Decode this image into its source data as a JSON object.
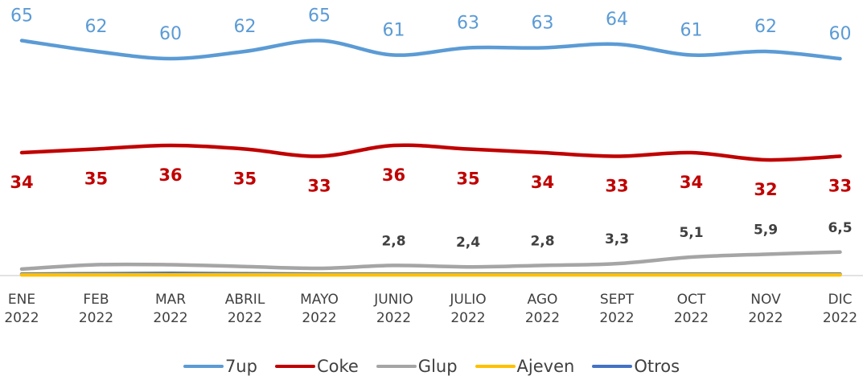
{
  "chart_data": {
    "type": "line",
    "categories": [
      "ENE\n2022",
      "FEB\n2022",
      "MAR\n2022",
      "ABRIL\n2022",
      "MAYO\n2022",
      "JUNIO\n2022",
      "JULIO\n2022",
      "AGO\n2022",
      "SEPT\n2022",
      "OCT\n2022",
      "NOV\n2022",
      "DIC\n2022"
    ],
    "series": [
      {
        "name": "7up",
        "color": "#5b9bd5",
        "values": [
          65,
          62,
          60,
          62,
          65,
          61,
          63,
          63,
          64,
          61,
          62,
          60
        ]
      },
      {
        "name": "Coke",
        "color": "#c00000",
        "values": [
          34,
          35,
          36,
          35,
          33,
          36,
          35,
          34,
          33,
          34,
          32,
          33
        ]
      },
      {
        "name": "Glup",
        "color": "#a5a5a5",
        "values": [
          1.8,
          3.0,
          3.0,
          2.5,
          2.0,
          2.8,
          2.4,
          2.8,
          3.3,
          5.1,
          5.9,
          6.5
        ],
        "value_labels": [
          null,
          null,
          null,
          null,
          null,
          "2,8",
          "2,4",
          "2,8",
          "3,3",
          "5,1",
          "5,9",
          "6,5"
        ]
      },
      {
        "name": "Ajeven",
        "color": "#ffc000",
        "values": [
          0.2,
          0.2,
          0.2,
          0.2,
          0.2,
          0.2,
          0.2,
          0.2,
          0.2,
          0.2,
          0.2,
          0.2
        ]
      },
      {
        "name": "Otros",
        "color": "#4472c4",
        "values": [
          0.4,
          0.5,
          0.6,
          0.5,
          0.4,
          0.4,
          0.4,
          0.4,
          0.4,
          0.4,
          0.4,
          0.4
        ]
      }
    ],
    "ylim": [
      0,
      72
    ]
  }
}
